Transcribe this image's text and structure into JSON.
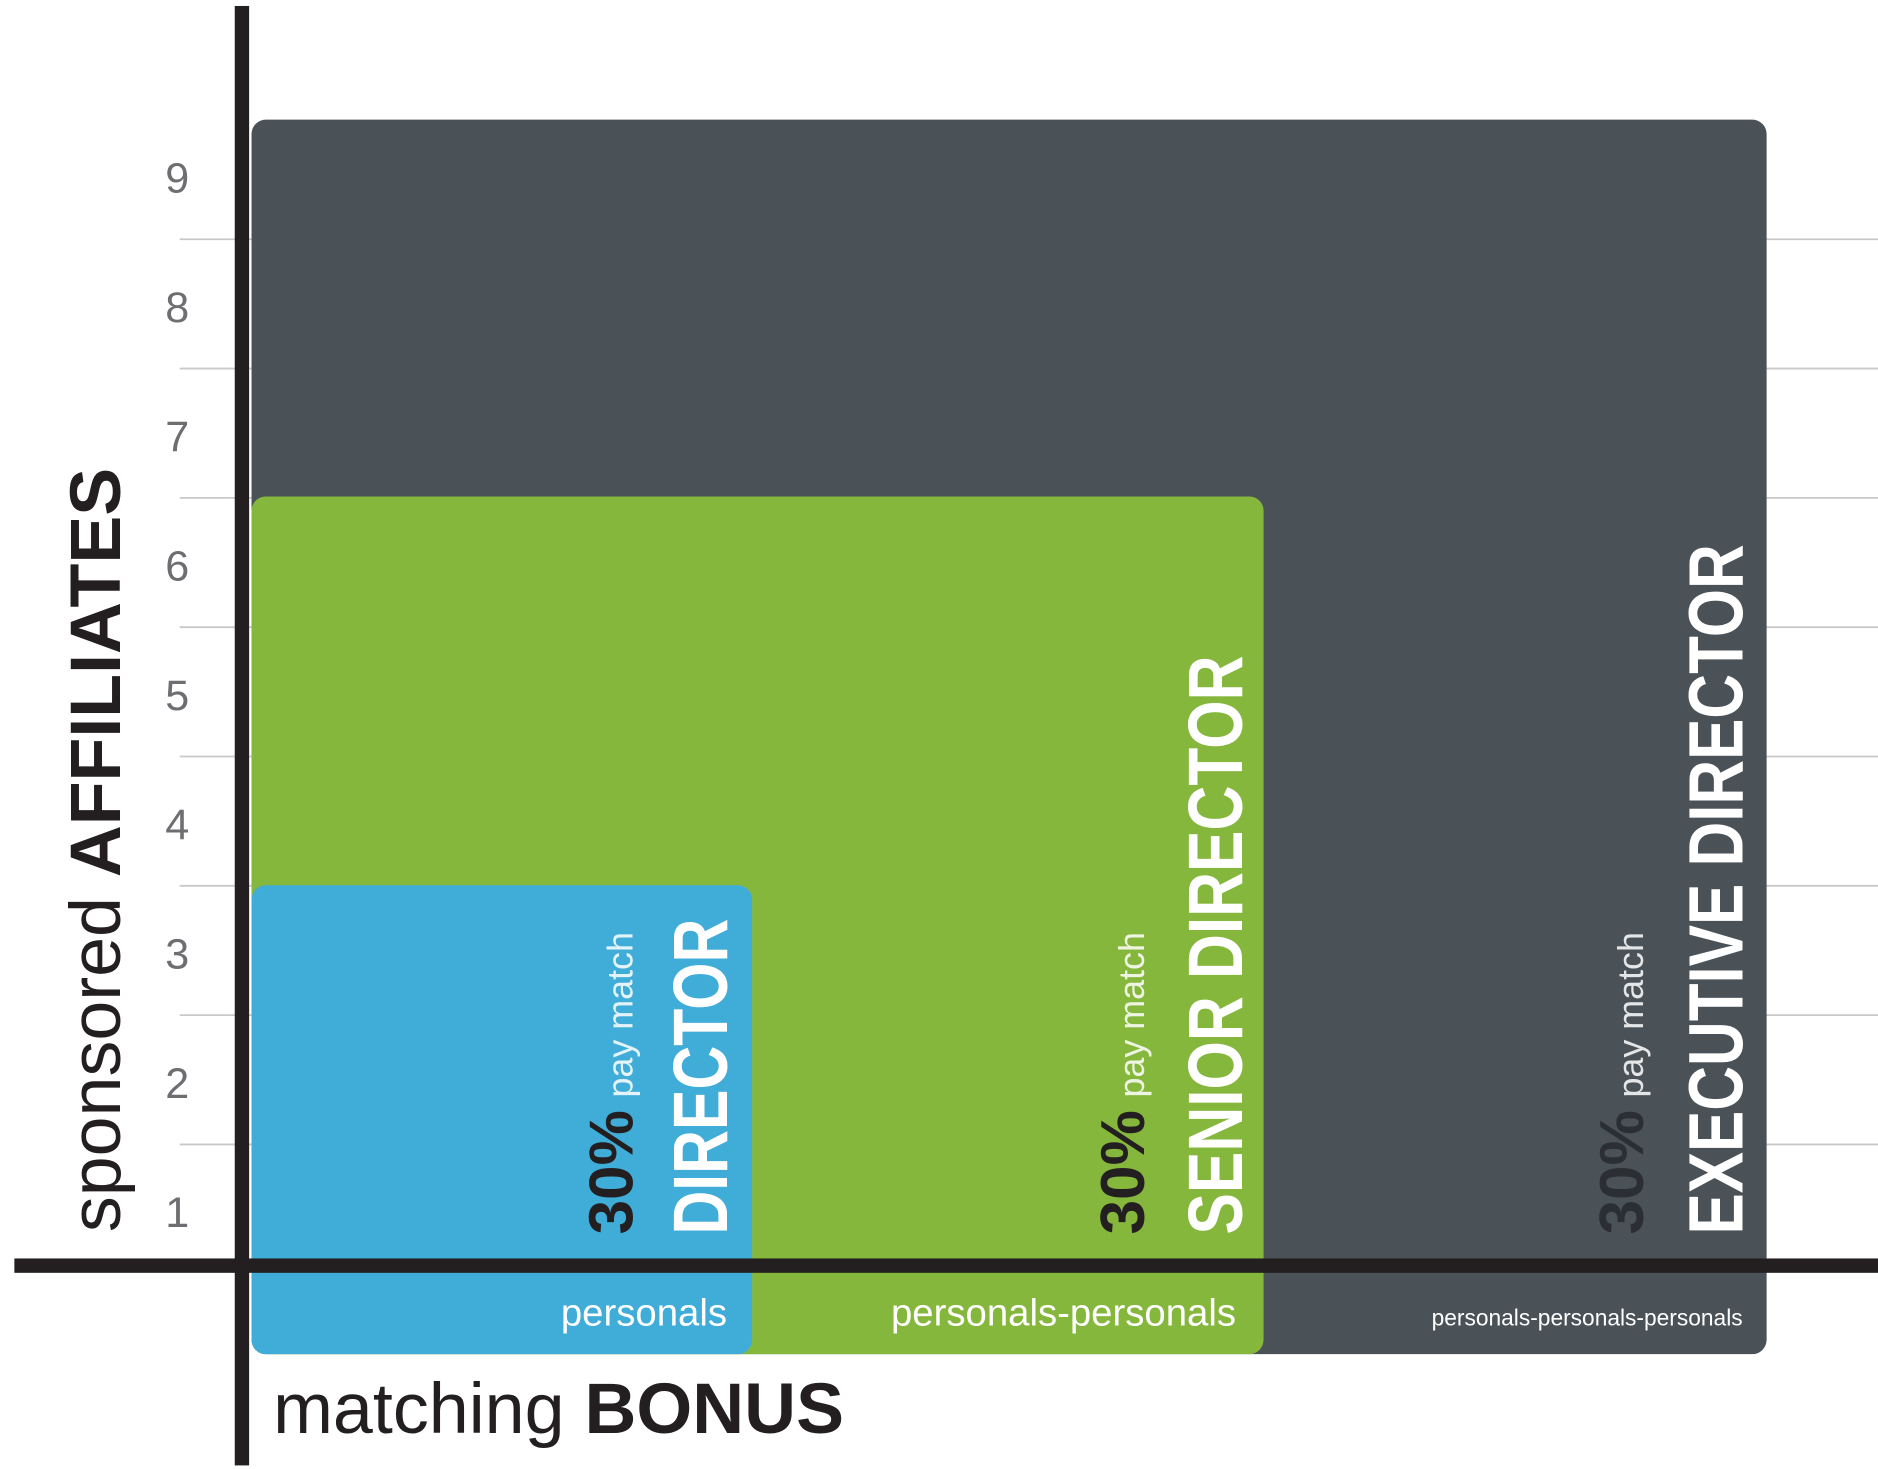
{
  "y_axis": {
    "label_light": "sponsored",
    "label_bold": "AFFILIATES"
  },
  "y_ticks": [
    "9",
    "8",
    "7",
    "6",
    "5",
    "4",
    "3",
    "2",
    "1"
  ],
  "levels": [
    {
      "percent": "30%",
      "pay_match": "pay match",
      "title": "DIRECTOR",
      "base": "personals"
    },
    {
      "percent": "30%",
      "pay_match": "pay match",
      "title": "SENIOR DIRECTOR",
      "base": "personals-personals"
    },
    {
      "percent": "30%",
      "pay_match": "pay match",
      "title": "EXECUTIVE DIRECTOR",
      "base": "personals-personals-personals"
    }
  ],
  "x_axis": {
    "label_light": "matching",
    "label_bold": "BONUS"
  }
}
